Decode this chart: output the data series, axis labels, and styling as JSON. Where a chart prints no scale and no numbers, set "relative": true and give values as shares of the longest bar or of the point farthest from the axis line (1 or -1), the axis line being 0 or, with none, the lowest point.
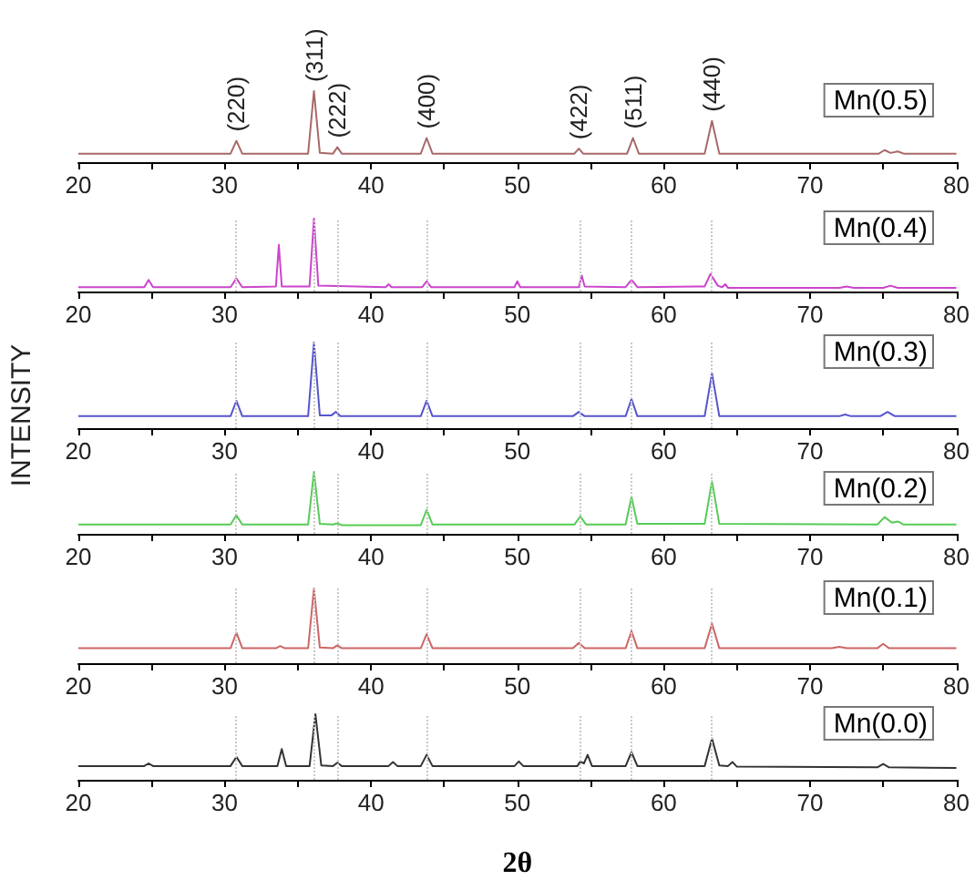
{
  "chart_data": [
    {
      "type": "line",
      "relative": true,
      "legend": "top right",
      "xlim": [
        20,
        80
      ],
      "xticks": [
        20,
        {
          "value": 25,
          "label": null
        },
        30,
        {
          "value": 35,
          "label": null
        },
        40,
        {
          "value": 45,
          "label": null
        },
        50,
        {
          "value": 55,
          "label": null
        },
        60,
        {
          "value": 65,
          "label": null
        },
        70,
        {
          "value": 75,
          "label": null
        },
        80
      ],
      "annotations": [
        {
          "text": "(220)",
          "x": 30.8,
          "y": 0.3
        },
        {
          "text": "(311)",
          "x": 36.1,
          "y": 1
        },
        {
          "text": "(222)",
          "x": 37.7,
          "y": 0.21
        },
        {
          "text": "(400)",
          "x": 43.8,
          "y": 0.34
        },
        {
          "text": "(422)",
          "x": 54.2,
          "y": 0.19
        },
        {
          "text": "(511)",
          "x": 57.9,
          "y": 0.34
        },
        {
          "text": "(440)",
          "x": 63.3,
          "y": 0.58
        }
      ],
      "series": [
        {
          "name": "Mn(0.5)",
          "color": "#a86868",
          "x": [
            20,
            30.4,
            30.8,
            31.2,
            35.7,
            36.1,
            36.5,
            37.4,
            37.7,
            38.0,
            43.4,
            43.8,
            44.2,
            53.9,
            54.2,
            54.5,
            57.5,
            57.9,
            58.3,
            62.8,
            63.3,
            63.8,
            74.7,
            75.1,
            75.5,
            76.0,
            76.4,
            80
          ],
          "values": [
            0.12,
            0.12,
            0.3,
            0.12,
            0.12,
            1,
            0.13,
            0.12,
            0.21,
            0.12,
            0.12,
            0.34,
            0.12,
            0.12,
            0.19,
            0.12,
            0.12,
            0.34,
            0.12,
            0.12,
            0.58,
            0.12,
            0.12,
            0.17,
            0.13,
            0.15,
            0.12,
            0.12
          ]
        }
      ]
    },
    {
      "type": "line",
      "relative": true,
      "legend": "top right",
      "xlim": [
        20,
        80
      ],
      "xticks": [
        20,
        {
          "value": 25,
          "label": null
        },
        30,
        {
          "value": 35,
          "label": null
        },
        40,
        {
          "value": 45,
          "label": null
        },
        50,
        {
          "value": 55,
          "label": null
        },
        60,
        {
          "value": 65,
          "label": null
        },
        70,
        {
          "value": 75,
          "label": null
        },
        80
      ],
      "ref_lines": [
        {
          "axis": "x",
          "value": 30.8,
          "color": "#c8c8c8",
          "line_style": "dotted"
        },
        {
          "axis": "x",
          "value": 36.1,
          "color": "#c8c8c8",
          "line_style": "dotted"
        },
        {
          "axis": "x",
          "value": 37.7,
          "color": "#c8c8c8",
          "line_style": "dotted"
        },
        {
          "axis": "x",
          "value": 43.8,
          "color": "#c8c8c8",
          "line_style": "dotted"
        },
        {
          "axis": "x",
          "value": 54.3,
          "color": "#c8c8c8",
          "line_style": "dotted"
        },
        {
          "axis": "x",
          "value": 57.8,
          "color": "#c8c8c8",
          "line_style": "dotted"
        },
        {
          "axis": "x",
          "value": 63.3,
          "color": "#c8c8c8",
          "line_style": "dotted"
        }
      ],
      "series": [
        {
          "name": "Mn(0.4)",
          "color": "#cc44cc",
          "x": [
            20,
            24.5,
            24.8,
            25.1,
            30.4,
            30.8,
            31.2,
            33.5,
            33.7,
            33.9,
            35.8,
            36.1,
            36.4,
            41.0,
            41.2,
            41.4,
            43.5,
            43.8,
            44.1,
            49.8,
            50.0,
            50.2,
            54.2,
            54.4,
            54.6,
            57.4,
            57.8,
            58.2,
            62.8,
            63.2,
            63.7,
            64.0,
            64.2,
            64.4,
            72.0,
            72.5,
            73.0,
            75.0,
            75.5,
            76.0,
            80
          ],
          "values": [
            0.06,
            0.06,
            0.16,
            0.06,
            0.06,
            0.18,
            0.06,
            0.07,
            0.64,
            0.07,
            0.07,
            1,
            0.08,
            0.06,
            0.1,
            0.06,
            0.06,
            0.14,
            0.06,
            0.06,
            0.14,
            0.06,
            0.06,
            0.22,
            0.07,
            0.06,
            0.16,
            0.06,
            0.07,
            0.24,
            0.08,
            0.06,
            0.1,
            0.05,
            0.05,
            0.07,
            0.05,
            0.05,
            0.08,
            0.05,
            0.05
          ]
        }
      ]
    },
    {
      "type": "line",
      "relative": true,
      "legend": "top right",
      "ylabel": "INTENSITY",
      "xlim": [
        20,
        80
      ],
      "xticks": [
        20,
        {
          "value": 25,
          "label": null
        },
        30,
        {
          "value": 35,
          "label": null
        },
        40,
        {
          "value": 45,
          "label": null
        },
        50,
        {
          "value": 55,
          "label": null
        },
        60,
        {
          "value": 65,
          "label": null
        },
        70,
        {
          "value": 75,
          "label": null
        },
        80
      ],
      "ref_lines": [
        {
          "axis": "x",
          "value": 30.8,
          "color": "#c8c8c8",
          "line_style": "dotted"
        },
        {
          "axis": "x",
          "value": 36.1,
          "color": "#c8c8c8",
          "line_style": "dotted"
        },
        {
          "axis": "x",
          "value": 37.7,
          "color": "#c8c8c8",
          "line_style": "dotted"
        },
        {
          "axis": "x",
          "value": 43.8,
          "color": "#c8c8c8",
          "line_style": "dotted"
        },
        {
          "axis": "x",
          "value": 54.3,
          "color": "#c8c8c8",
          "line_style": "dotted"
        },
        {
          "axis": "x",
          "value": 57.8,
          "color": "#c8c8c8",
          "line_style": "dotted"
        },
        {
          "axis": "x",
          "value": 63.3,
          "color": "#c8c8c8",
          "line_style": "dotted"
        }
      ],
      "series": [
        {
          "name": "Mn(0.3)",
          "color": "#5555cc",
          "x": [
            20,
            30.4,
            30.8,
            31.2,
            35.7,
            36.1,
            36.5,
            37.3,
            37.6,
            37.9,
            43.4,
            43.8,
            44.2,
            53.8,
            54.2,
            54.6,
            57.4,
            57.8,
            58.2,
            62.8,
            63.3,
            63.8,
            72.0,
            72.4,
            72.8,
            74.8,
            75.3,
            75.8,
            80
          ],
          "values": [
            0.14,
            0.14,
            0.32,
            0.14,
            0.14,
            1,
            0.15,
            0.15,
            0.19,
            0.14,
            0.14,
            0.32,
            0.14,
            0.14,
            0.19,
            0.14,
            0.14,
            0.34,
            0.14,
            0.14,
            0.64,
            0.14,
            0.14,
            0.16,
            0.14,
            0.14,
            0.19,
            0.14,
            0.14
          ]
        }
      ]
    },
    {
      "type": "line",
      "relative": true,
      "legend": "top right",
      "xlim": [
        20,
        80
      ],
      "xticks": [
        20,
        {
          "value": 25,
          "label": null
        },
        30,
        {
          "value": 35,
          "label": null
        },
        40,
        {
          "value": 45,
          "label": null
        },
        50,
        {
          "value": 55,
          "label": null
        },
        60,
        {
          "value": 65,
          "label": null
        },
        70,
        {
          "value": 75,
          "label": null
        },
        80
      ],
      "ref_lines": [
        {
          "axis": "x",
          "value": 30.8,
          "color": "#c8c8c8",
          "line_style": "dotted"
        },
        {
          "axis": "x",
          "value": 36.1,
          "color": "#c8c8c8",
          "line_style": "dotted"
        },
        {
          "axis": "x",
          "value": 37.7,
          "color": "#c8c8c8",
          "line_style": "dotted"
        },
        {
          "axis": "x",
          "value": 43.8,
          "color": "#c8c8c8",
          "line_style": "dotted"
        },
        {
          "axis": "x",
          "value": 54.3,
          "color": "#c8c8c8",
          "line_style": "dotted"
        },
        {
          "axis": "x",
          "value": 57.8,
          "color": "#c8c8c8",
          "line_style": "dotted"
        },
        {
          "axis": "x",
          "value": 63.3,
          "color": "#c8c8c8",
          "line_style": "dotted"
        }
      ],
      "series": [
        {
          "name": "Mn(0.2)",
          "color": "#55cc55",
          "x": [
            20,
            30.4,
            30.8,
            31.2,
            35.7,
            36.1,
            36.5,
            37.4,
            37.7,
            38.0,
            43.4,
            43.8,
            44.2,
            53.9,
            54.3,
            54.7,
            57.4,
            57.8,
            58.2,
            62.8,
            63.3,
            63.8,
            74.6,
            75.1,
            75.6,
            76.0,
            76.4,
            80
          ],
          "values": [
            0.15,
            0.15,
            0.3,
            0.15,
            0.15,
            1,
            0.16,
            0.15,
            0.17,
            0.14,
            0.14,
            0.39,
            0.15,
            0.15,
            0.28,
            0.15,
            0.15,
            0.6,
            0.16,
            0.16,
            0.85,
            0.16,
            0.15,
            0.27,
            0.18,
            0.2,
            0.15,
            0.15
          ]
        }
      ]
    },
    {
      "type": "line",
      "relative": true,
      "legend": "top right",
      "xlim": [
        20,
        80
      ],
      "xticks": [
        20,
        {
          "value": 25,
          "label": null
        },
        30,
        {
          "value": 35,
          "label": null
        },
        40,
        {
          "value": 45,
          "label": null
        },
        50,
        {
          "value": 55,
          "label": null
        },
        60,
        {
          "value": 65,
          "label": null
        },
        70,
        {
          "value": 75,
          "label": null
        },
        80
      ],
      "ref_lines": [
        {
          "axis": "x",
          "value": 30.8,
          "color": "#c8c8c8",
          "line_style": "dotted"
        },
        {
          "axis": "x",
          "value": 36.1,
          "color": "#c8c8c8",
          "line_style": "dotted"
        },
        {
          "axis": "x",
          "value": 37.7,
          "color": "#c8c8c8",
          "line_style": "dotted"
        },
        {
          "axis": "x",
          "value": 43.8,
          "color": "#c8c8c8",
          "line_style": "dotted"
        },
        {
          "axis": "x",
          "value": 54.3,
          "color": "#c8c8c8",
          "line_style": "dotted"
        },
        {
          "axis": "x",
          "value": 57.8,
          "color": "#c8c8c8",
          "line_style": "dotted"
        },
        {
          "axis": "x",
          "value": 63.3,
          "color": "#c8c8c8",
          "line_style": "dotted"
        }
      ],
      "series": [
        {
          "name": "Mn(0.1)",
          "color": "#cc6666",
          "x": [
            20,
            30.4,
            30.8,
            31.2,
            33.5,
            33.8,
            34.1,
            35.7,
            36.1,
            36.5,
            37.4,
            37.7,
            38.0,
            43.4,
            43.8,
            44.2,
            53.8,
            54.2,
            54.6,
            57.4,
            57.8,
            58.2,
            62.8,
            63.3,
            63.8,
            71.5,
            72.0,
            72.5,
            74.6,
            75.0,
            75.4,
            80
          ],
          "values": [
            0.2,
            0.2,
            0.41,
            0.2,
            0.2,
            0.23,
            0.2,
            0.2,
            1,
            0.21,
            0.2,
            0.24,
            0.2,
            0.2,
            0.39,
            0.2,
            0.2,
            0.27,
            0.2,
            0.2,
            0.43,
            0.2,
            0.2,
            0.53,
            0.2,
            0.2,
            0.22,
            0.2,
            0.2,
            0.26,
            0.2,
            0.2
          ]
        }
      ]
    },
    {
      "type": "line",
      "relative": true,
      "legend": "top right",
      "xlabel": "2θ",
      "xlim": [
        20,
        80
      ],
      "xticks": [
        20,
        {
          "value": 25,
          "label": null
        },
        30,
        {
          "value": 35,
          "label": null
        },
        40,
        {
          "value": 45,
          "label": null
        },
        50,
        {
          "value": 55,
          "label": null
        },
        60,
        {
          "value": 65,
          "label": null
        },
        70,
        {
          "value": 75,
          "label": null
        },
        80
      ],
      "ref_lines": [
        {
          "axis": "x",
          "value": 30.8,
          "color": "#c8c8c8",
          "line_style": "dotted"
        },
        {
          "axis": "x",
          "value": 36.1,
          "color": "#c8c8c8",
          "line_style": "dotted"
        },
        {
          "axis": "x",
          "value": 37.7,
          "color": "#c8c8c8",
          "line_style": "dotted"
        },
        {
          "axis": "x",
          "value": 43.8,
          "color": "#c8c8c8",
          "line_style": "dotted"
        },
        {
          "axis": "x",
          "value": 54.3,
          "color": "#c8c8c8",
          "line_style": "dotted"
        },
        {
          "axis": "x",
          "value": 57.8,
          "color": "#c8c8c8",
          "line_style": "dotted"
        },
        {
          "axis": "x",
          "value": 63.3,
          "color": "#c8c8c8",
          "line_style": "dotted"
        }
      ],
      "series": [
        {
          "name": "Mn(0.0)",
          "color": "#333333",
          "x": [
            20,
            24.5,
            24.8,
            25.1,
            30.4,
            30.8,
            31.2,
            33.6,
            33.9,
            34.2,
            35.8,
            36.2,
            36.6,
            37.4,
            37.7,
            38.0,
            41.2,
            41.5,
            41.8,
            43.4,
            43.8,
            44.2,
            49.8,
            50.1,
            50.4,
            54.1,
            54.3,
            54.55,
            54.8,
            55.1,
            57.4,
            57.8,
            58.2,
            62.8,
            63.3,
            63.8,
            64.4,
            64.7,
            65.0,
            74.6,
            75.0,
            75.4,
            80
          ],
          "values": [
            0.21,
            0.21,
            0.25,
            0.21,
            0.21,
            0.35,
            0.21,
            0.21,
            0.47,
            0.21,
            0.21,
            1,
            0.22,
            0.21,
            0.26,
            0.21,
            0.21,
            0.27,
            0.21,
            0.21,
            0.38,
            0.21,
            0.21,
            0.28,
            0.21,
            0.21,
            0.28,
            0.25,
            0.38,
            0.21,
            0.21,
            0.42,
            0.21,
            0.21,
            0.63,
            0.22,
            0.21,
            0.27,
            0.2,
            0.19,
            0.24,
            0.19,
            0.18
          ]
        }
      ]
    }
  ]
}
